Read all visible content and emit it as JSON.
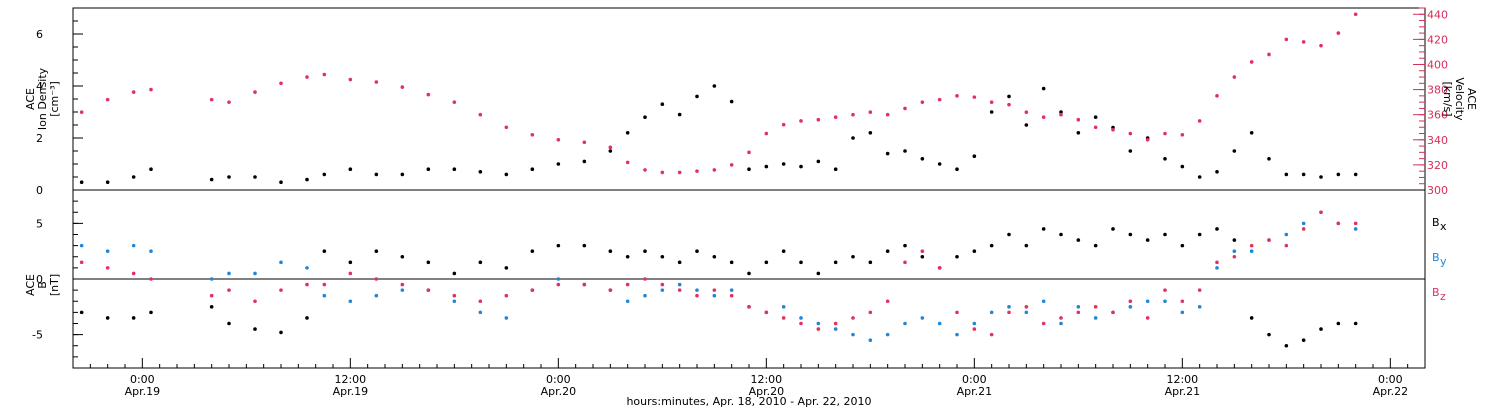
{
  "colors": {
    "black": "#000000",
    "pink": "#e2305f",
    "blue": "#1f86d8"
  },
  "chart_data": [
    {
      "type": "scatter",
      "panel": "top",
      "ylabel_left": [
        "ACE",
        "Ion Density",
        "[cm⁻³]"
      ],
      "ylabel_right": [
        "ACE",
        "Velocity",
        "[km/s]"
      ],
      "ylim_left": [
        0,
        7
      ],
      "ylim_right": [
        300,
        445
      ],
      "yticks_left": [
        "0",
        "2",
        "4",
        "6"
      ],
      "yticks_right": [
        "300",
        "320",
        "340",
        "360",
        "380",
        "400",
        "420",
        "440"
      ],
      "series": [
        {
          "name": "Ion Density",
          "color": "#000000",
          "axis": "left",
          "x": [
            -3.5,
            -2,
            -0.5,
            0.5,
            4,
            5,
            6.5,
            8,
            9.5,
            10.5,
            12,
            13.5,
            15,
            16.5,
            18,
            19.5,
            21,
            22.5,
            24,
            25.5,
            27,
            28,
            29,
            30,
            31,
            32,
            33,
            34,
            35,
            36,
            37,
            38,
            39,
            40,
            41,
            42,
            43,
            44,
            45,
            46,
            47,
            48,
            49,
            50,
            51,
            52,
            53,
            54,
            55,
            56,
            57,
            58,
            59,
            60,
            61,
            62,
            63,
            64,
            65,
            66,
            67,
            68,
            69,
            70
          ],
          "y": [
            0.3,
            0.3,
            0.5,
            0.8,
            0.4,
            0.5,
            0.5,
            0.3,
            0.4,
            0.6,
            0.8,
            0.6,
            0.6,
            0.8,
            0.8,
            0.7,
            0.6,
            0.8,
            1.0,
            1.1,
            1.5,
            2.2,
            2.8,
            3.3,
            2.9,
            3.6,
            4.0,
            3.4,
            0.8,
            0.9,
            1.0,
            0.9,
            1.1,
            0.8,
            2.0,
            2.2,
            1.4,
            1.5,
            1.2,
            1.0,
            0.8,
            1.3,
            3.0,
            3.6,
            2.5,
            3.9,
            3.0,
            2.2,
            2.8,
            2.4,
            1.5,
            2.0,
            1.2,
            0.9,
            0.5,
            0.7,
            1.5,
            2.2,
            1.2,
            0.6,
            0.6,
            0.5,
            0.6,
            0.6
          ]
        },
        {
          "name": "Velocity",
          "color": "#e2305f",
          "axis": "right",
          "x": [
            -3.5,
            -2,
            -0.5,
            0.5,
            4,
            5,
            6.5,
            8,
            9.5,
            10.5,
            12,
            13.5,
            15,
            16.5,
            18,
            19.5,
            21,
            22.5,
            24,
            25.5,
            27,
            28,
            29,
            30,
            31,
            32,
            33,
            34,
            35,
            36,
            37,
            38,
            39,
            40,
            41,
            42,
            43,
            44,
            45,
            46,
            47,
            48,
            49,
            50,
            51,
            52,
            53,
            54,
            55,
            56,
            57,
            58,
            59,
            60,
            61,
            62,
            63,
            64,
            65,
            66,
            67,
            68,
            69,
            70
          ],
          "y": [
            362,
            372,
            378,
            380,
            372,
            370,
            378,
            385,
            390,
            392,
            388,
            386,
            382,
            376,
            370,
            360,
            350,
            344,
            340,
            338,
            334,
            322,
            316,
            314,
            314,
            315,
            316,
            320,
            330,
            345,
            352,
            355,
            356,
            358,
            360,
            362,
            360,
            365,
            370,
            372,
            375,
            374,
            370,
            368,
            362,
            358,
            360,
            356,
            350,
            348,
            345,
            340,
            345,
            344,
            355,
            375,
            390,
            402,
            408,
            420,
            418,
            415,
            425,
            440
          ]
        }
      ]
    },
    {
      "type": "scatter",
      "panel": "bottom",
      "ylabel_left": [
        "ACE",
        "B",
        "[nT]"
      ],
      "ylim": [
        -8,
        8
      ],
      "yticks": [
        "-5",
        "0",
        "5"
      ],
      "xlim": [
        -4,
        74
      ],
      "xticks": [
        {
          "hour": 0,
          "time": "0:00",
          "date": "Apr.19"
        },
        {
          "hour": 12,
          "time": "12:00",
          "date": "Apr.19"
        },
        {
          "hour": 24,
          "time": "0:00",
          "date": "Apr.20"
        },
        {
          "hour": 36,
          "time": "12:00",
          "date": "Apr.20"
        },
        {
          "hour": 48,
          "time": "0:00",
          "date": "Apr.21"
        },
        {
          "hour": 60,
          "time": "12:00",
          "date": "Apr.21"
        },
        {
          "hour": 72,
          "time": "0:00",
          "date": "Apr.22"
        }
      ],
      "xlabel": "hours:minutes, Apr. 18, 2010 - Apr. 22, 2010",
      "legend": [
        {
          "main": "B",
          "sub": "x",
          "color": "#000000"
        },
        {
          "main": "B",
          "sub": "y",
          "color": "#1f86d8"
        },
        {
          "main": "B",
          "sub": "z",
          "color": "#e2305f"
        }
      ],
      "series": [
        {
          "name": "Bx",
          "color": "#000000",
          "x": [
            -3.5,
            -2,
            -0.5,
            0.5,
            4,
            5,
            6.5,
            8,
            9.5,
            10.5,
            12,
            13.5,
            15,
            16.5,
            18,
            19.5,
            21,
            22.5,
            24,
            25.5,
            27,
            28,
            29,
            30,
            31,
            32,
            33,
            34,
            35,
            36,
            37,
            38,
            39,
            40,
            41,
            42,
            43,
            44,
            45,
            46,
            47,
            48,
            49,
            50,
            51,
            52,
            53,
            54,
            55,
            56,
            57,
            58,
            59,
            60,
            61,
            62,
            63,
            64,
            65,
            66,
            67,
            68,
            69,
            70
          ],
          "y": [
            -3.0,
            -3.5,
            -3.5,
            -3.0,
            -2.5,
            -4.0,
            -4.5,
            -4.8,
            -3.5,
            2.5,
            1.5,
            2.5,
            2.0,
            1.5,
            0.5,
            1.5,
            1.0,
            2.5,
            3.0,
            3.0,
            2.5,
            2.0,
            2.5,
            2.0,
            1.5,
            2.5,
            2.0,
            1.5,
            0.5,
            1.5,
            2.5,
            1.5,
            0.5,
            1.5,
            2.0,
            1.5,
            2.5,
            3.0,
            2.0,
            1.0,
            2.0,
            2.5,
            3.0,
            4.0,
            3.0,
            4.5,
            4.0,
            3.5,
            3.0,
            4.5,
            4.0,
            3.5,
            4.0,
            3.0,
            4.0,
            4.5,
            3.5,
            -3.5,
            -5.0,
            -6.0,
            -5.5,
            -4.5,
            -4.0,
            -4.0
          ]
        },
        {
          "name": "By",
          "color": "#1f86d8",
          "x": [
            -3.5,
            -2,
            -0.5,
            0.5,
            4,
            5,
            6.5,
            8,
            9.5,
            10.5,
            12,
            13.5,
            15,
            16.5,
            18,
            19.5,
            21,
            22.5,
            24,
            25.5,
            27,
            28,
            29,
            30,
            31,
            32,
            33,
            34,
            35,
            36,
            37,
            38,
            39,
            40,
            41,
            42,
            43,
            44,
            45,
            46,
            47,
            48,
            49,
            50,
            51,
            52,
            53,
            54,
            55,
            56,
            57,
            58,
            59,
            60,
            61,
            62,
            63,
            64,
            65,
            66,
            67,
            68,
            69,
            70
          ],
          "y": [
            3.0,
            2.5,
            3.0,
            2.5,
            0.0,
            0.5,
            0.5,
            1.5,
            1.0,
            -1.5,
            -2.0,
            -1.5,
            -1.0,
            -1.0,
            -2.0,
            -3.0,
            -3.5,
            -1.0,
            0.0,
            -0.5,
            -1.0,
            -2.0,
            -1.5,
            -1.0,
            -0.5,
            -1.0,
            -1.5,
            -1.0,
            -2.5,
            -3.0,
            -2.5,
            -3.5,
            -4.0,
            -4.5,
            -5.0,
            -5.5,
            -5.0,
            -4.0,
            -3.5,
            -4.0,
            -5.0,
            -4.0,
            -3.0,
            -2.5,
            -3.0,
            -2.0,
            -4.0,
            -2.5,
            -3.5,
            -3.0,
            -2.5,
            -2.0,
            -2.0,
            -3.0,
            -2.5,
            1.0,
            2.5,
            2.5,
            3.5,
            4.0,
            5.0,
            6.0,
            5.0,
            4.5
          ]
        },
        {
          "name": "Bz",
          "color": "#e2305f",
          "x": [
            -3.5,
            -2,
            -0.5,
            0.5,
            4,
            5,
            6.5,
            8,
            9.5,
            10.5,
            12,
            13.5,
            15,
            16.5,
            18,
            19.5,
            21,
            22.5,
            24,
            25.5,
            27,
            28,
            29,
            30,
            31,
            32,
            33,
            34,
            35,
            36,
            37,
            38,
            39,
            40,
            41,
            42,
            43,
            44,
            45,
            46,
            47,
            48,
            49,
            50,
            51,
            52,
            53,
            54,
            55,
            56,
            57,
            58,
            59,
            60,
            61,
            62,
            63,
            64,
            65,
            66,
            67,
            68,
            69,
            70
          ],
          "y": [
            1.5,
            1.0,
            0.5,
            0.0,
            -1.5,
            -1.0,
            -2.0,
            -1.0,
            -0.5,
            -0.5,
            0.5,
            0.0,
            -0.5,
            -1.0,
            -1.5,
            -2.0,
            -1.5,
            -1.0,
            -0.5,
            -0.5,
            -1.0,
            -0.5,
            0.0,
            -0.5,
            -1.0,
            -1.5,
            -1.0,
            -1.5,
            -2.5,
            -3.0,
            -3.5,
            -4.0,
            -4.5,
            -4.0,
            -3.5,
            -3.0,
            -2.0,
            1.5,
            2.5,
            1.0,
            -3.0,
            -4.5,
            -5.0,
            -3.0,
            -2.5,
            -4.0,
            -3.5,
            -3.0,
            -2.5,
            -3.0,
            -2.0,
            -3.5,
            -1.0,
            -2.0,
            -1.0,
            1.5,
            2.0,
            3.0,
            3.5,
            3.0,
            4.5,
            6.0,
            5.0,
            5.0
          ]
        }
      ]
    }
  ]
}
